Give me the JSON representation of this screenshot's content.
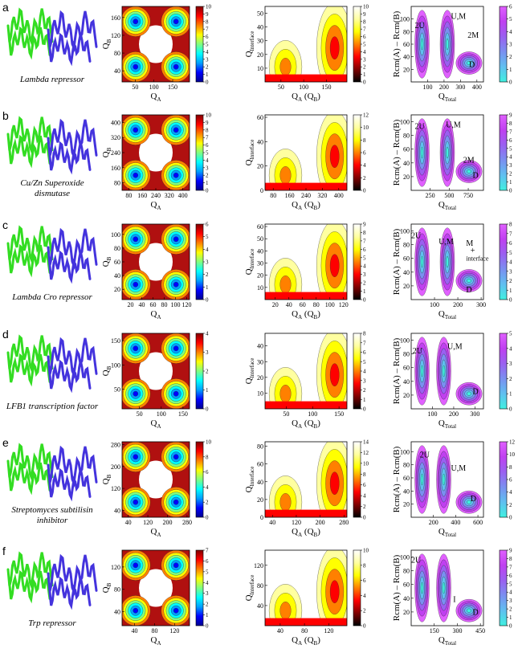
{
  "panels": [
    {
      "letter": "a",
      "protein": [
        "Lambda repressor"
      ],
      "plots": [
        {
          "colormap": "jet",
          "xlabel": [
            "Q",
            "A"
          ],
          "ylabel": [
            "Q",
            "B"
          ],
          "xlim": [
            15,
            195
          ],
          "xticks": [
            50,
            100,
            150
          ],
          "ylim": [
            15,
            185
          ],
          "yticks": [
            40,
            80,
            120,
            160
          ],
          "clim": [
            0,
            10
          ],
          "cticks": [
            0,
            1,
            2,
            3,
            4,
            5,
            6,
            7,
            8,
            9,
            10
          ],
          "annotations": []
        },
        {
          "colormap": "hot",
          "xlabel": [
            "Q",
            "A",
            " (Q",
            "B",
            ")"
          ],
          "ylabel": [
            "Q",
            "Interface"
          ],
          "xlim": [
            15,
            195
          ],
          "xticks": [
            50,
            100,
            150
          ],
          "ylim": [
            0,
            55
          ],
          "yticks": [
            10,
            20,
            30,
            40,
            50
          ],
          "clim": [
            0,
            10
          ],
          "cticks": [
            0,
            1,
            2,
            3,
            4,
            5,
            6,
            7,
            8,
            9,
            10
          ],
          "annotations": []
        },
        {
          "colormap": "cool",
          "xlabel": [
            "Q",
            "Total"
          ],
          "ylabel": [
            "Rcm(A) – Rcm(B)"
          ],
          "xlim": [
            0,
            440
          ],
          "xticks": [
            100,
            200,
            300,
            400
          ],
          "ylim": [
            0,
            120
          ],
          "yticks": [
            20,
            40,
            60,
            80,
            100
          ],
          "clim": [
            0,
            6
          ],
          "cticks": [
            0,
            1,
            2,
            3,
            4,
            5,
            6
          ],
          "annotations": [
            "2U",
            "U,M",
            "2M",
            "D"
          ]
        }
      ]
    },
    {
      "letter": "b",
      "protein": [
        "Cu/Zn Superoxide",
        "dismutase"
      ],
      "plots": [
        {
          "colormap": "jet",
          "xlabel": [
            "Q",
            "A"
          ],
          "ylabel": [
            "Q",
            "B"
          ],
          "xlim": [
            40,
            440
          ],
          "xticks": [
            80,
            160,
            240,
            320,
            400
          ],
          "ylim": [
            40,
            440
          ],
          "yticks": [
            80,
            160,
            240,
            320,
            400
          ],
          "clim": [
            0,
            10
          ],
          "cticks": [
            0,
            1,
            2,
            3,
            4,
            5,
            6,
            7,
            8,
            9,
            10
          ],
          "annotations": []
        },
        {
          "colormap": "hot",
          "xlabel": [
            "Q",
            "A",
            " (Q",
            "B",
            ")"
          ],
          "ylabel": [
            "Q",
            "Interface"
          ],
          "xlim": [
            40,
            440
          ],
          "xticks": [
            80,
            160,
            240,
            320,
            400
          ],
          "ylim": [
            0,
            62
          ],
          "yticks": [
            0,
            20,
            40,
            60
          ],
          "clim": [
            0,
            12
          ],
          "cticks": [
            0,
            2,
            4,
            6,
            8,
            10,
            12
          ],
          "annotations": []
        },
        {
          "colormap": "cool",
          "xlabel": [
            "Q",
            "Total"
          ],
          "ylabel": [
            "Rcm(A) – Rcm(B)"
          ],
          "xlim": [
            0,
            950
          ],
          "xticks": [
            250,
            500,
            750
          ],
          "ylim": [
            0,
            110
          ],
          "yticks": [
            20,
            40,
            60,
            80,
            100
          ],
          "clim": [
            0,
            9
          ],
          "cticks": [
            0,
            1,
            2,
            3,
            4,
            5,
            6,
            7,
            8,
            9
          ],
          "annotations": [
            "2U",
            "U,M",
            "2M",
            "D"
          ]
        }
      ]
    },
    {
      "letter": "c",
      "protein": [
        "Lambda Cro repressor"
      ],
      "plots": [
        {
          "colormap": "jet",
          "xlabel": [
            "Q",
            "A"
          ],
          "ylabel": [
            "Q",
            "B"
          ],
          "xlim": [
            5,
            125
          ],
          "xticks": [
            20,
            40,
            60,
            80,
            100,
            120
          ],
          "ylim": [
            5,
            115
          ],
          "yticks": [
            20,
            40,
            60,
            80,
            100
          ],
          "clim": [
            0,
            6
          ],
          "cticks": [
            0,
            1,
            2,
            3,
            4,
            5,
            6
          ],
          "annotations": []
        },
        {
          "colormap": "hot",
          "xlabel": [
            "Q",
            "A",
            " (Q",
            "B",
            ")"
          ],
          "ylabel": [
            "Q",
            "Interface"
          ],
          "xlim": [
            5,
            125
          ],
          "xticks": [
            20,
            40,
            60,
            80,
            100,
            120
          ],
          "ylim": [
            0,
            62
          ],
          "yticks": [
            10,
            20,
            30,
            40,
            50,
            60
          ],
          "clim": [
            0,
            9
          ],
          "cticks": [
            0,
            1,
            2,
            3,
            4,
            5,
            6,
            7,
            8,
            9
          ],
          "annotations": []
        },
        {
          "colormap": "cool",
          "xlabel": [
            "Q",
            "Total"
          ],
          "ylabel": [
            "Rcm(A) – Rcm(B)"
          ],
          "xlim": [
            0,
            310
          ],
          "xticks": [
            100,
            200,
            300
          ],
          "ylim": [
            0,
            110
          ],
          "yticks": [
            20,
            40,
            60,
            80,
            100
          ],
          "clim": [
            0,
            8
          ],
          "cticks": [
            0,
            1,
            2,
            3,
            4,
            5,
            6,
            7,
            8
          ],
          "annotations": [
            "2U",
            "U,M",
            "M",
            "+",
            "interface",
            "D"
          ]
        }
      ]
    },
    {
      "letter": "d",
      "protein": [
        "LFB1 transcription factor"
      ],
      "plots": [
        {
          "colormap": "jet",
          "xlabel": [
            "Q",
            "A"
          ],
          "ylabel": [
            "Q",
            "B"
          ],
          "xlim": [
            10,
            165
          ],
          "xticks": [
            50,
            100,
            150
          ],
          "ylim": [
            10,
            165
          ],
          "yticks": [
            50,
            100,
            150
          ],
          "clim": [
            0,
            4
          ],
          "cticks": [
            0,
            1,
            2,
            3,
            4
          ],
          "annotations": []
        },
        {
          "colormap": "hot",
          "xlabel": [
            "Q",
            "A",
            " (Q",
            "B",
            ")"
          ],
          "ylabel": [
            "Q",
            "Interface"
          ],
          "xlim": [
            10,
            165
          ],
          "xticks": [
            50,
            100,
            150
          ],
          "ylim": [
            0,
            48
          ],
          "yticks": [
            10,
            20,
            30,
            40
          ],
          "clim": [
            0,
            8
          ],
          "cticks": [
            0,
            1,
            2,
            3,
            4,
            5,
            6,
            7,
            8
          ],
          "annotations": []
        },
        {
          "colormap": "cool",
          "xlabel": [
            "Q",
            "Total"
          ],
          "ylabel": [
            "Rcm(A) – Rcm(B)"
          ],
          "xlim": [
            0,
            340
          ],
          "xticks": [
            100,
            200,
            300
          ],
          "ylim": [
            0,
            110
          ],
          "yticks": [
            20,
            40,
            60,
            80,
            100
          ],
          "clim": [
            0,
            5
          ],
          "cticks": [
            0,
            1,
            2,
            3,
            4,
            5
          ],
          "annotations": [
            "2U",
            "U,M",
            "D"
          ]
        }
      ]
    },
    {
      "letter": "e",
      "protein": [
        "Streptomyces subtilisin",
        "inhibitor"
      ],
      "plots": [
        {
          "colormap": "jet",
          "xlabel": [
            "Q",
            "A"
          ],
          "ylabel": [
            "Q",
            "B"
          ],
          "xlim": [
            15,
            290
          ],
          "xticks": [
            40,
            120,
            200,
            280
          ],
          "ylim": [
            15,
            290
          ],
          "yticks": [
            40,
            120,
            200,
            280
          ],
          "clim": [
            0,
            10
          ],
          "cticks": [
            0,
            2,
            4,
            6,
            8,
            10
          ],
          "annotations": []
        },
        {
          "colormap": "hot",
          "xlabel": [
            "Q",
            "A",
            " (Q",
            "B",
            ")"
          ],
          "ylabel": [
            "Q",
            "Interface"
          ],
          "xlim": [
            15,
            290
          ],
          "xticks": [
            40,
            120,
            200,
            280
          ],
          "ylim": [
            0,
            85
          ],
          "yticks": [
            0,
            20,
            40,
            60,
            80
          ],
          "clim": [
            0,
            14
          ],
          "cticks": [
            0,
            2,
            4,
            6,
            8,
            10,
            12,
            14
          ],
          "annotations": []
        },
        {
          "colormap": "cool",
          "xlabel": [
            "Q",
            "Total"
          ],
          "ylabel": [
            "Rcm(A) – Rcm(B)"
          ],
          "xlim": [
            0,
            650
          ],
          "xticks": [
            200,
            400,
            600
          ],
          "ylim": [
            0,
            115
          ],
          "yticks": [
            20,
            40,
            60,
            80,
            100
          ],
          "clim": [
            0,
            12
          ],
          "cticks": [
            0,
            2,
            4,
            6,
            8,
            10,
            12
          ],
          "annotations": [
            "2U",
            "U,M",
            "D"
          ]
        }
      ]
    },
    {
      "letter": "f",
      "protein": [
        "Trp repressor"
      ],
      "plots": [
        {
          "colormap": "jet",
          "xlabel": [
            "Q",
            "A"
          ],
          "ylabel": [
            "Q",
            "B"
          ],
          "xlim": [
            15,
            150
          ],
          "xticks": [
            40,
            80,
            120
          ],
          "ylim": [
            15,
            150
          ],
          "yticks": [
            40,
            80,
            120
          ],
          "clim": [
            0,
            7
          ],
          "cticks": [
            0,
            1,
            2,
            3,
            4,
            5,
            6,
            7
          ],
          "annotations": []
        },
        {
          "colormap": "hot",
          "xlabel": [
            "Q",
            "A",
            " (Q",
            "B",
            ")"
          ],
          "ylabel": [
            "Q",
            "Interface"
          ],
          "xlim": [
            15,
            150
          ],
          "xticks": [
            40,
            80,
            120
          ],
          "ylim": [
            0,
            150
          ],
          "yticks": [
            40,
            80,
            120
          ],
          "clim": [
            0,
            10
          ],
          "cticks": [
            0,
            2,
            4,
            6,
            8,
            10
          ],
          "annotations": []
        },
        {
          "colormap": "cool",
          "xlabel": [
            "Q",
            "Total"
          ],
          "ylabel": [
            "Rcm(A) – Rcm(B)"
          ],
          "xlim": [
            0,
            470
          ],
          "xticks": [
            150,
            300,
            450
          ],
          "ylim": [
            0,
            110
          ],
          "yticks": [
            20,
            40,
            60,
            80,
            100
          ],
          "clim": [
            0,
            9
          ],
          "cticks": [
            0,
            1,
            2,
            3,
            4,
            5,
            6,
            7,
            8,
            9
          ],
          "annotations": [
            "2U",
            "I",
            "D"
          ]
        }
      ]
    }
  ]
}
